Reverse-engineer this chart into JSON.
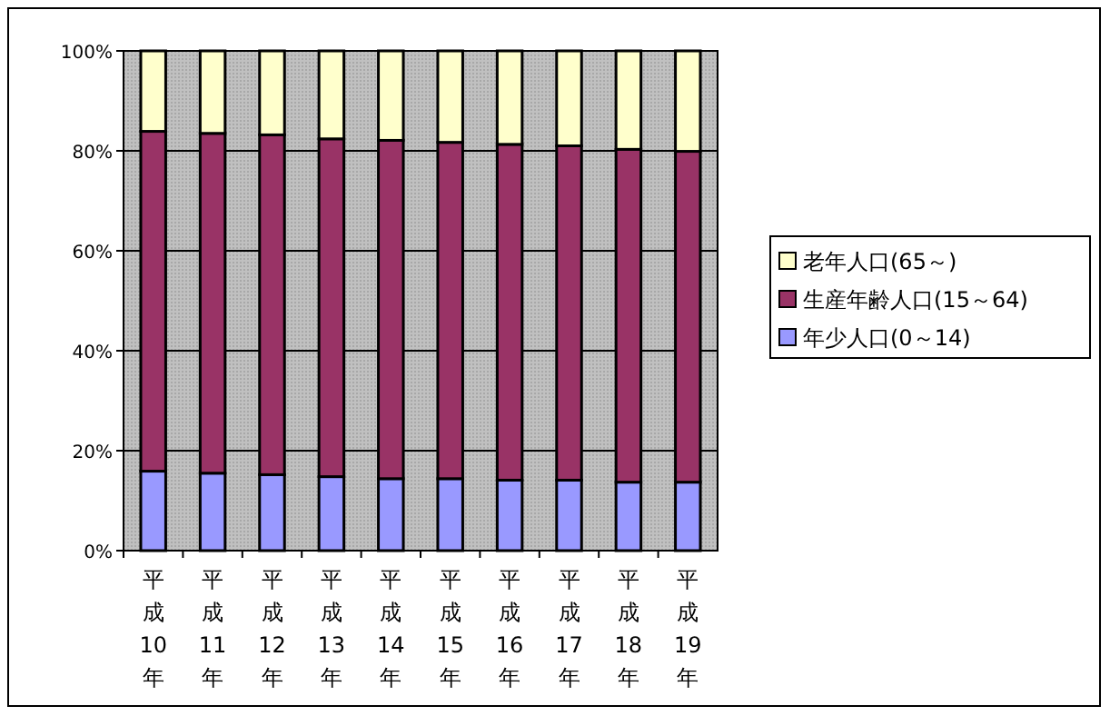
{
  "chart_data": {
    "type": "bar",
    "stacked": true,
    "categories": [
      "平成10年",
      "平成11年",
      "平成12年",
      "平成13年",
      "平成14年",
      "平成15年",
      "平成16年",
      "平成17年",
      "平成18年",
      "平成19年"
    ],
    "series": [
      {
        "name": "年少人口(0～14)",
        "color": "#9999ff",
        "values": [
          15.9,
          15.5,
          15.2,
          14.8,
          14.4,
          14.4,
          14.1,
          14.1,
          13.7,
          13.7
        ]
      },
      {
        "name": "生産年齢人口(15～64)",
        "color": "#993366",
        "values": [
          68.0,
          68.0,
          68.0,
          67.6,
          67.7,
          67.3,
          67.2,
          66.9,
          66.6,
          66.2
        ]
      },
      {
        "name": "老年人口(65～)",
        "color": "#ffffcc",
        "values": [
          16.1,
          16.5,
          16.8,
          17.6,
          17.9,
          18.3,
          18.7,
          19.0,
          19.7,
          20.1
        ]
      }
    ],
    "ylim": [
      0,
      100
    ],
    "yticks": [
      {
        "value": 0,
        "label": "0%"
      },
      {
        "value": 20,
        "label": "20%"
      },
      {
        "value": 40,
        "label": "40%"
      },
      {
        "value": 60,
        "label": "60%"
      },
      {
        "value": 80,
        "label": "80%"
      },
      {
        "value": 100,
        "label": "100%"
      }
    ],
    "grid": "y",
    "legend": "right"
  }
}
